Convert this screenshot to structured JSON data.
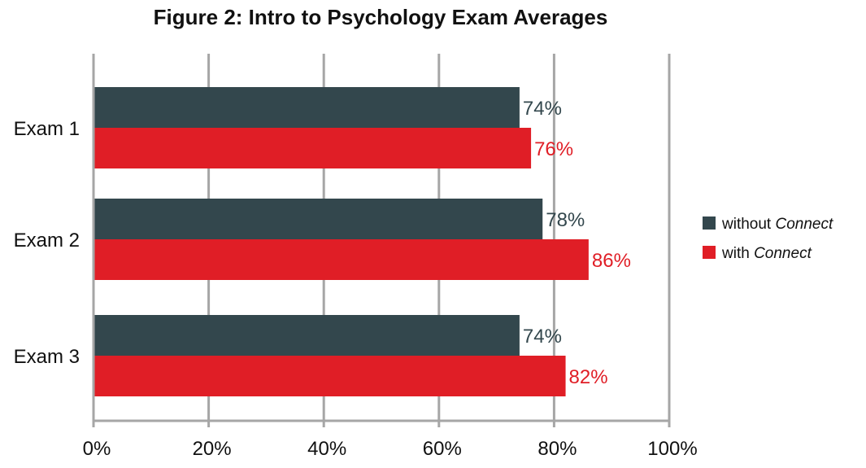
{
  "chart_data": {
    "type": "bar",
    "orientation": "horizontal",
    "title": "Figure 2: Intro to Psychology Exam Averages",
    "categories": [
      "Exam 1",
      "Exam 2",
      "Exam 3"
    ],
    "series": [
      {
        "name": "without Connect",
        "values": [
          74,
          78,
          74
        ],
        "labels": [
          "74%",
          "78%",
          "74%"
        ],
        "color": "#33474d"
      },
      {
        "name": "with Connect",
        "values": [
          76,
          86,
          82
        ],
        "labels": [
          "76%",
          "86%",
          "82%"
        ],
        "color": "#e01e26"
      }
    ],
    "xlim": [
      0,
      100
    ],
    "xticks": [
      0,
      20,
      40,
      60,
      80,
      100
    ],
    "xtick_labels": [
      "0%",
      "20%",
      "40%",
      "60%",
      "80%",
      "100%"
    ],
    "grid": true,
    "legend_position": "right"
  }
}
